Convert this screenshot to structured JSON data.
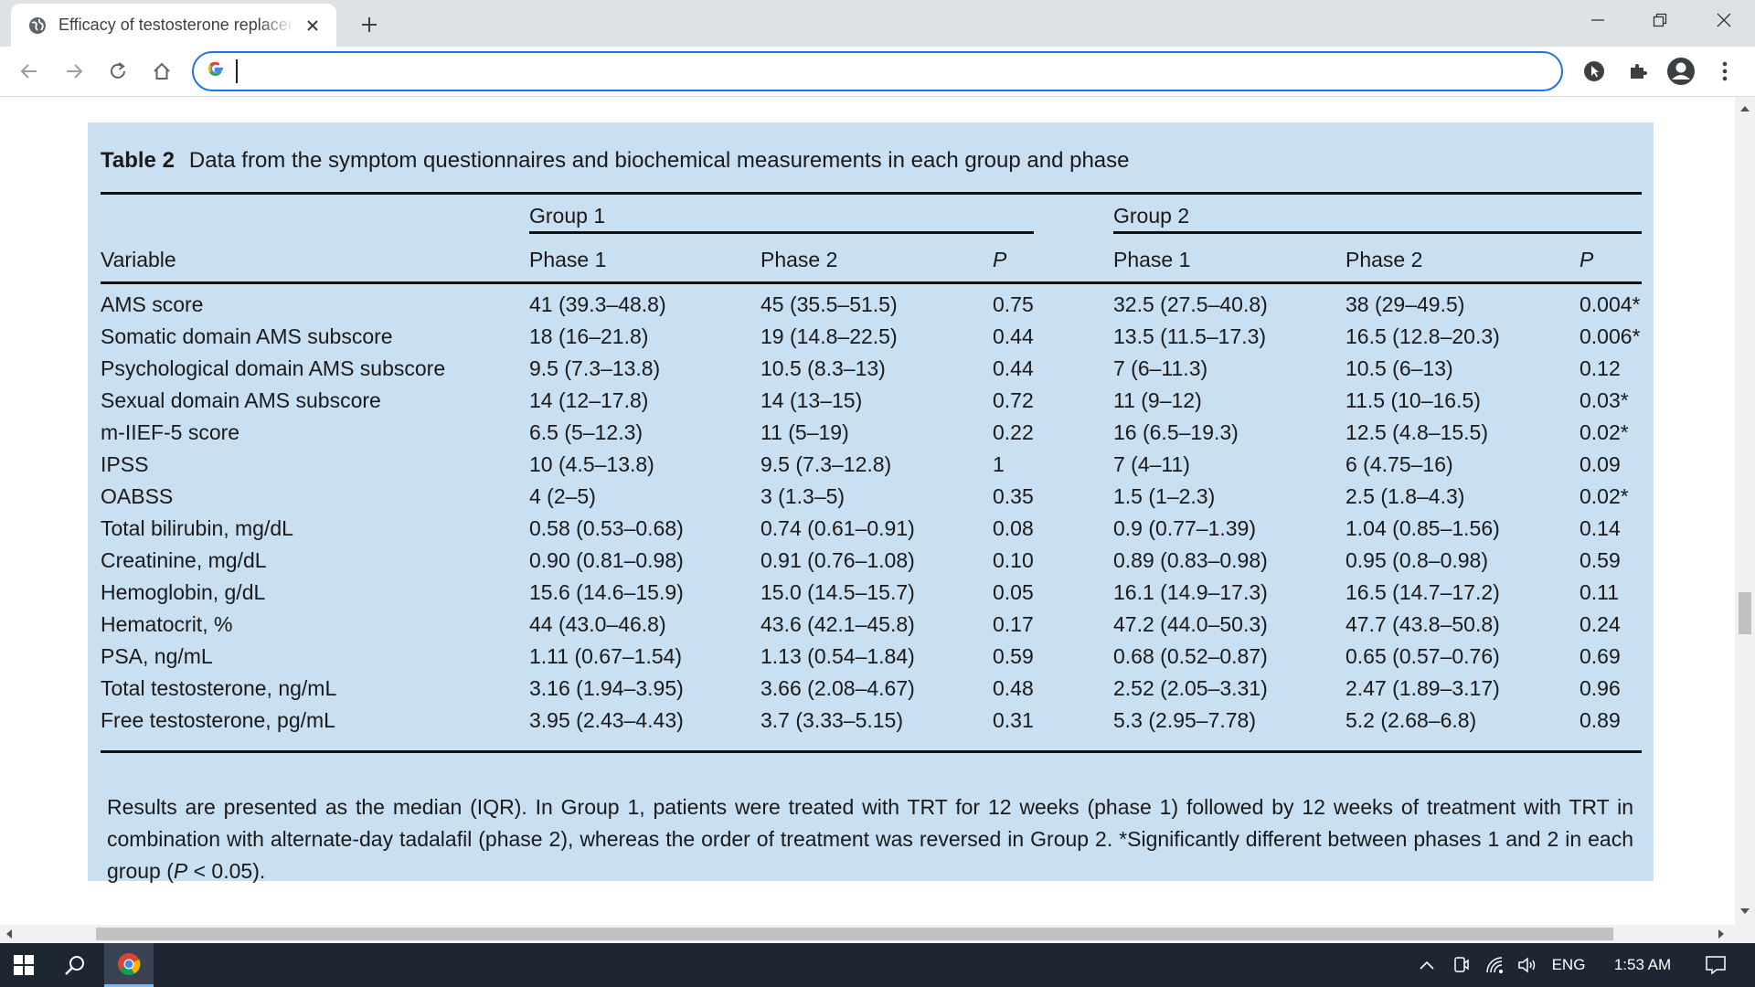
{
  "browser": {
    "tab_title": "Efficacy of testosterone replacement therapy",
    "address_value": "",
    "colors": {
      "accent": "#1a73e8",
      "tabbar": "#dee1e6",
      "table_bg": "#c9dff2",
      "taskbar": "#1e2633"
    },
    "icons": {
      "favicon": "globe-icon",
      "close": "close-icon",
      "new_tab": "plus-icon",
      "minimize": "minimize-icon",
      "restore": "restore-icon",
      "window_close": "close-icon",
      "back": "back-arrow-icon",
      "forward": "forward-arrow-icon",
      "reload": "reload-icon",
      "home": "home-icon",
      "google": "google-g-icon",
      "extension_1": "cursor-extension-icon",
      "extensions": "puzzle-icon",
      "profile": "profile-icon",
      "menu": "kebab-menu-icon"
    }
  },
  "table": {
    "label": "Table 2",
    "caption": "Data from the symptom questionnaires and biochemical measurements in each group and phase",
    "group1": "Group 1",
    "group2": "Group 2",
    "columns": [
      "Variable",
      "Phase 1",
      "Phase 2",
      "P",
      "Phase 1",
      "Phase 2",
      "P"
    ],
    "rows": [
      [
        "AMS score",
        "41 (39.3–48.8)",
        "45 (35.5–51.5)",
        "0.75",
        "32.5 (27.5–40.8)",
        "38 (29–49.5)",
        "0.004*"
      ],
      [
        "Somatic domain AMS subscore",
        "18 (16–21.8)",
        "19 (14.8–22.5)",
        "0.44",
        "13.5 (11.5–17.3)",
        "16.5 (12.8–20.3)",
        "0.006*"
      ],
      [
        "Psychological domain AMS subscore",
        "9.5 (7.3–13.8)",
        "10.5 (8.3–13)",
        "0.44",
        "7 (6–11.3)",
        "10.5 (6–13)",
        "0.12"
      ],
      [
        "Sexual domain AMS subscore",
        "14 (12–17.8)",
        "14 (13–15)",
        "0.72",
        "11 (9–12)",
        "11.5 (10–16.5)",
        "0.03*"
      ],
      [
        "m-IIEF-5 score",
        "6.5 (5–12.3)",
        "11 (5–19)",
        "0.22",
        "16 (6.5–19.3)",
        "12.5 (4.8–15.5)",
        "0.02*"
      ],
      [
        "IPSS",
        "10 (4.5–13.8)",
        "9.5 (7.3–12.8)",
        "1",
        "7 (4–11)",
        "6 (4.75–16)",
        "0.09"
      ],
      [
        "OABSS",
        "4 (2–5)",
        "3 (1.3–5)",
        "0.35",
        "1.5 (1–2.3)",
        "2.5 (1.8–4.3)",
        "0.02*"
      ],
      [
        "Total bilirubin, mg/dL",
        "0.58 (0.53–0.68)",
        "0.74 (0.61–0.91)",
        "0.08",
        "0.9 (0.77–1.39)",
        "1.04 (0.85–1.56)",
        "0.14"
      ],
      [
        "Creatinine, mg/dL",
        "0.90 (0.81–0.98)",
        "0.91 (0.76–1.08)",
        "0.10",
        "0.89 (0.83–0.98)",
        "0.95 (0.8–0.98)",
        "0.59"
      ],
      [
        "Hemoglobin, g/dL",
        "15.6 (14.6–15.9)",
        "15.0 (14.5–15.7)",
        "0.05",
        "16.1 (14.9–17.3)",
        "16.5 (14.7–17.2)",
        "0.11"
      ],
      [
        "Hematocrit, %",
        "44 (43.0–46.8)",
        "43.6 (42.1–45.8)",
        "0.17",
        "47.2 (44.0–50.3)",
        "47.7 (43.8–50.8)",
        "0.24"
      ],
      [
        "PSA, ng/mL",
        "1.11 (0.67–1.54)",
        "1.13 (0.54–1.84)",
        "0.59",
        "0.68 (0.52–0.87)",
        "0.65 (0.57–0.76)",
        "0.69"
      ],
      [
        "Total testosterone, ng/mL",
        "3.16 (1.94–3.95)",
        "3.66 (2.08–4.67)",
        "0.48",
        "2.52 (2.05–3.31)",
        "2.47 (1.89–3.17)",
        "0.96"
      ],
      [
        "Free testosterone, pg/mL",
        "3.95 (2.43–4.43)",
        "3.7 (3.33–5.15)",
        "0.31",
        "5.3 (2.95–7.78)",
        "5.2 (2.68–6.8)",
        "0.89"
      ]
    ],
    "footnote_a": "Results are presented as the median (IQR). In Group 1, patients were treated with TRT for 12 weeks (phase 1) followed by 12 weeks of treatment with TRT in combination with alternate-day tadalafil (phase 2), whereas the order of treatment was reversed in Group 2. *Significantly different between phases 1 and 2 in each group (",
    "footnote_p": "P",
    "footnote_b": " < 0.05)."
  },
  "taskbar": {
    "language": "ENG",
    "time": "1:53 AM",
    "icons": [
      "windows-start-icon",
      "search-icon",
      "chrome-icon",
      "chevron-up-icon",
      "meet-now-icon",
      "wifi-icon",
      "volume-icon",
      "notification-icon"
    ]
  }
}
